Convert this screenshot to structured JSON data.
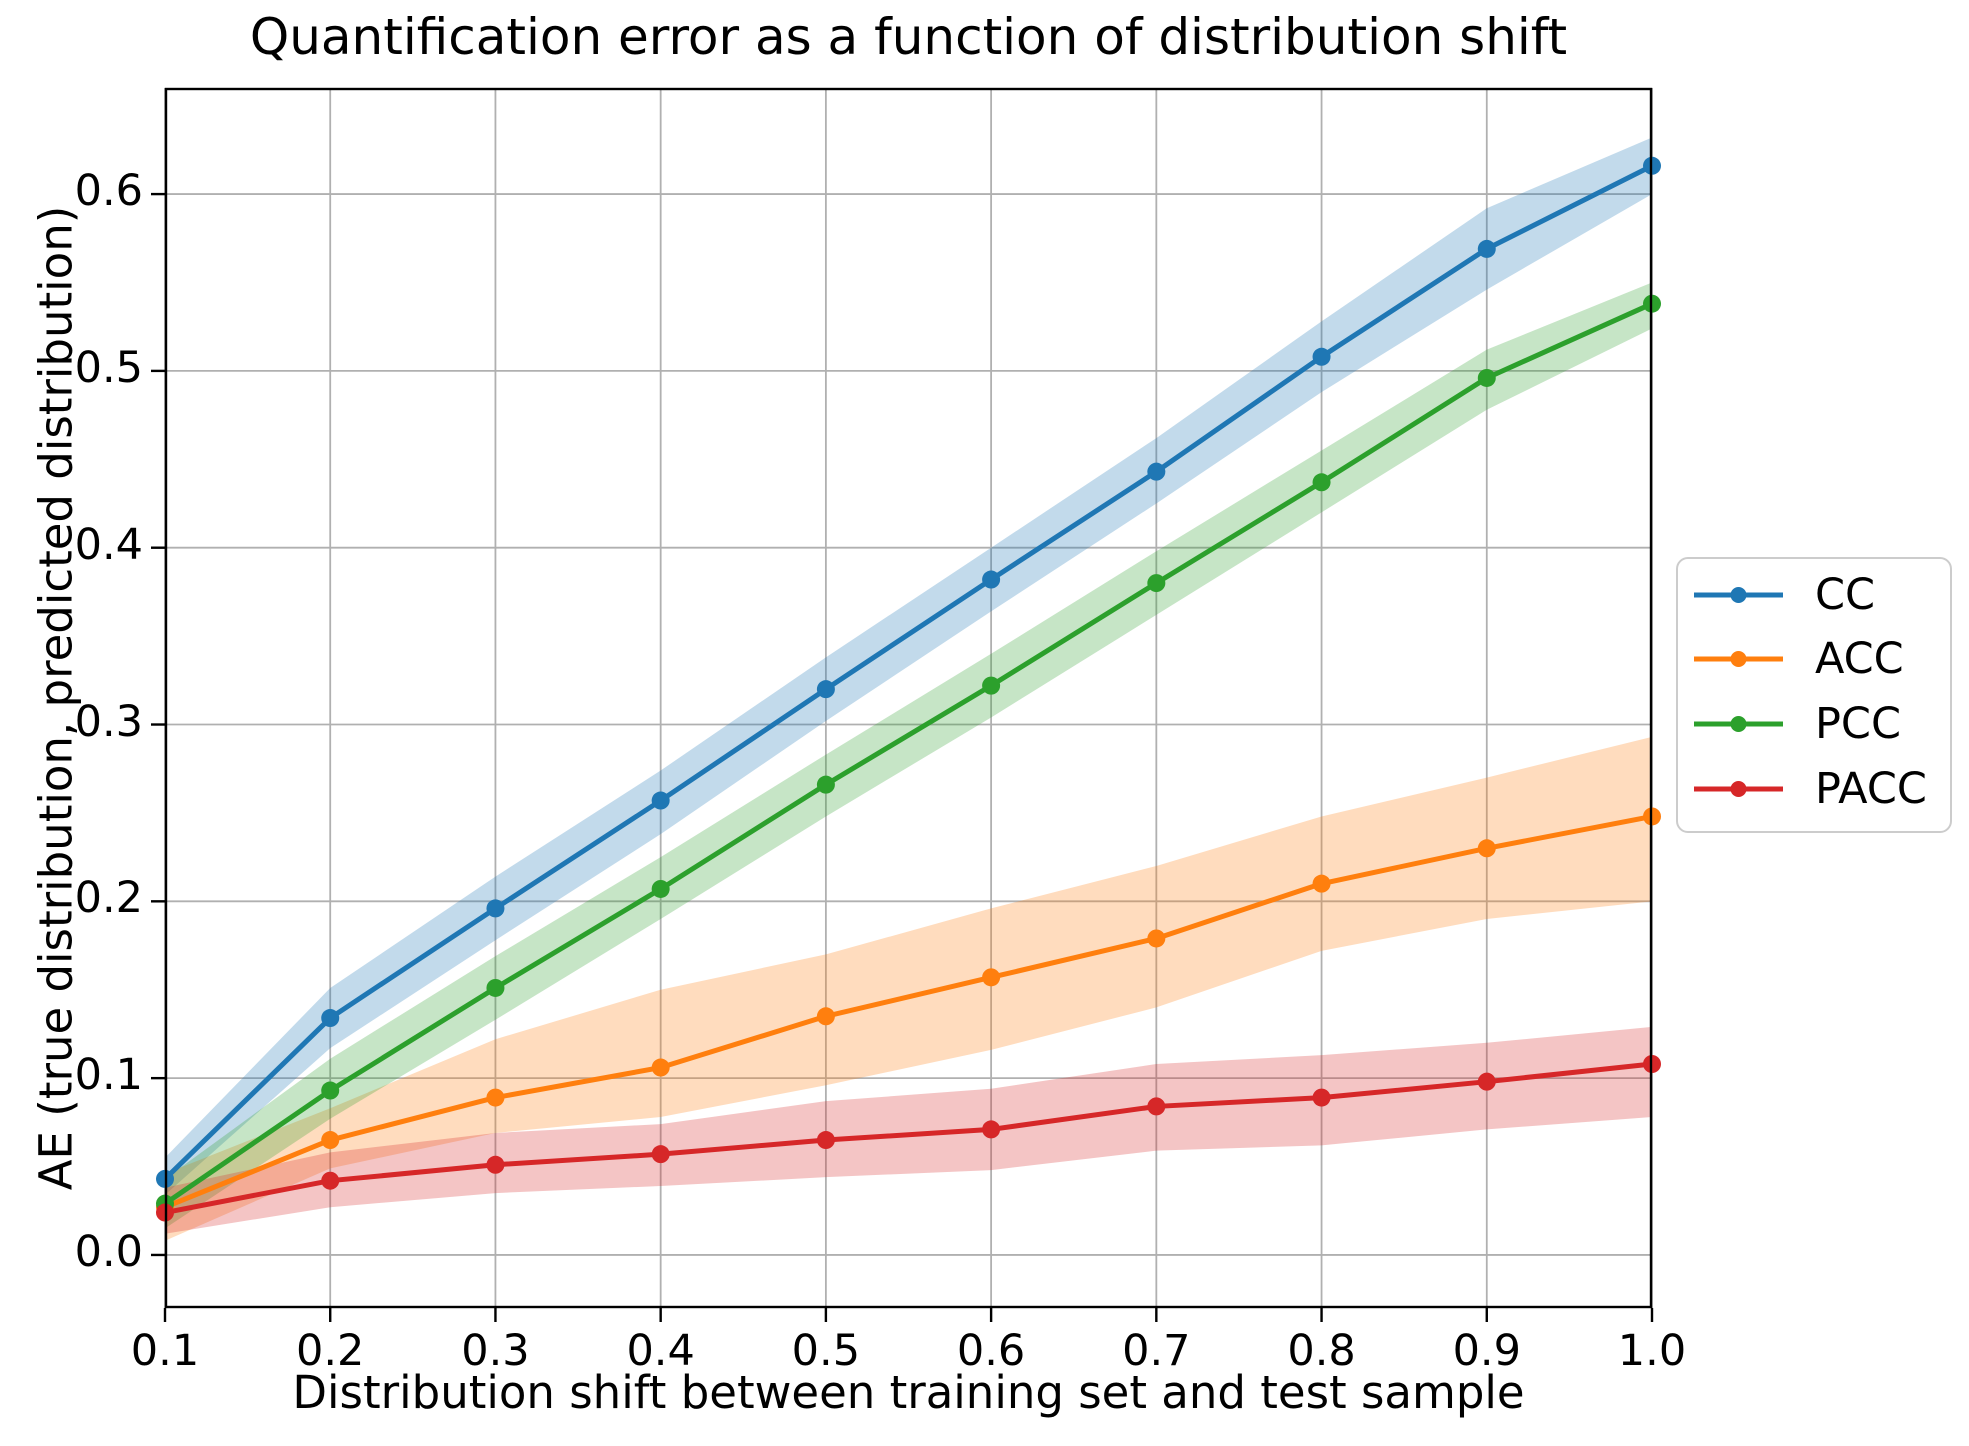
{
  "figure": {
    "background": "#ffffff",
    "grid_color": "#b0b0b0",
    "spine_color": "#000000",
    "legend_border_color": "#cccccc",
    "band_opacity": 0.27
  },
  "chart_data": {
    "type": "line",
    "title": "Quantification error as a function of distribution shift",
    "xlabel": "Distribution shift between training set and test sample",
    "ylabel": "AE (true distribution, predicted distribution)",
    "grid": true,
    "legend_position": "outside-right-center",
    "xlim": [
      0.1,
      1.0
    ],
    "ylim": [
      -0.03,
      0.66
    ],
    "x": [
      0.1,
      0.2,
      0.3,
      0.4,
      0.5,
      0.6,
      0.7,
      0.8,
      0.9,
      1.0
    ],
    "x_tick_labels": [
      "0.1",
      "0.2",
      "0.3",
      "0.4",
      "0.5",
      "0.6",
      "0.7",
      "0.8",
      "0.9",
      "1.0"
    ],
    "y_ticks": [
      0.0,
      0.1,
      0.2,
      0.3,
      0.4,
      0.5,
      0.6
    ],
    "y_tick_labels": [
      "0.0",
      "0.1",
      "0.2",
      "0.3",
      "0.4",
      "0.5",
      "0.6"
    ],
    "series": [
      {
        "name": "CC",
        "color": "#1f77b4",
        "values": [
          0.043,
          0.134,
          0.196,
          0.257,
          0.32,
          0.382,
          0.443,
          0.508,
          0.569,
          0.616
        ],
        "band_lower": [
          0.034,
          0.117,
          0.178,
          0.238,
          0.302,
          0.364,
          0.425,
          0.488,
          0.546,
          0.6
        ],
        "band_upper": [
          0.055,
          0.151,
          0.214,
          0.274,
          0.338,
          0.4,
          0.462,
          0.528,
          0.592,
          0.632
        ]
      },
      {
        "name": "ACC",
        "color": "#ff7f0e",
        "values": [
          0.027,
          0.065,
          0.089,
          0.106,
          0.135,
          0.157,
          0.179,
          0.21,
          0.23,
          0.248
        ],
        "band_lower": [
          0.008,
          0.049,
          0.069,
          0.078,
          0.096,
          0.116,
          0.14,
          0.172,
          0.19,
          0.2
        ],
        "band_upper": [
          0.046,
          0.083,
          0.122,
          0.15,
          0.17,
          0.196,
          0.22,
          0.248,
          0.27,
          0.293
        ]
      },
      {
        "name": "PCC",
        "color": "#2ca02c",
        "values": [
          0.029,
          0.093,
          0.151,
          0.207,
          0.266,
          0.322,
          0.38,
          0.437,
          0.496,
          0.538
        ],
        "band_lower": [
          0.015,
          0.077,
          0.133,
          0.19,
          0.248,
          0.304,
          0.362,
          0.42,
          0.478,
          0.524
        ],
        "band_upper": [
          0.043,
          0.111,
          0.169,
          0.225,
          0.283,
          0.34,
          0.398,
          0.455,
          0.512,
          0.55
        ]
      },
      {
        "name": "PACC",
        "color": "#d62728",
        "values": [
          0.024,
          0.042,
          0.051,
          0.057,
          0.065,
          0.071,
          0.084,
          0.089,
          0.098,
          0.108
        ],
        "band_lower": [
          0.012,
          0.027,
          0.035,
          0.039,
          0.044,
          0.048,
          0.059,
          0.062,
          0.071,
          0.078
        ],
        "band_upper": [
          0.038,
          0.058,
          0.069,
          0.074,
          0.087,
          0.094,
          0.108,
          0.113,
          0.12,
          0.129
        ]
      }
    ]
  }
}
